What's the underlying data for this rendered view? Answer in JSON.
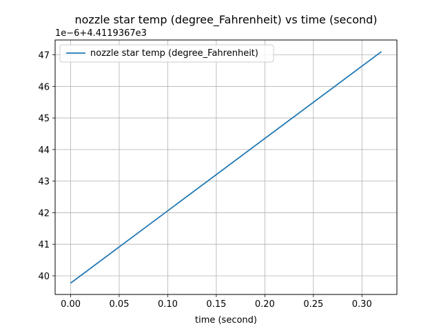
{
  "chart_data": {
    "type": "line",
    "title": "nozzle star temp (degree_Fahrenheit) vs time (second)",
    "xlabel": "time (second)",
    "ylabel": "",
    "y_offset_label": "1e−6+4.4119367e3",
    "grid": true,
    "legend_position": "upper-left",
    "xlim": [
      -0.016,
      0.336
    ],
    "ylim": [
      39.41,
      47.47
    ],
    "x_ticks": [
      0.0,
      0.05,
      0.1,
      0.15,
      0.2,
      0.25,
      0.3
    ],
    "x_tick_labels": [
      "0.00",
      "0.05",
      "0.10",
      "0.15",
      "0.20",
      "0.25",
      "0.30"
    ],
    "y_ticks": [
      40,
      41,
      42,
      43,
      44,
      45,
      46,
      47
    ],
    "y_tick_labels": [
      "40",
      "41",
      "42",
      "43",
      "44",
      "45",
      "46",
      "47"
    ],
    "series": [
      {
        "name": "nozzle star temp (degree_Fahrenheit)",
        "color": "#1f77b4",
        "x": [
          0.0,
          0.32
        ],
        "y": [
          39.77,
          47.1
        ]
      }
    ]
  }
}
